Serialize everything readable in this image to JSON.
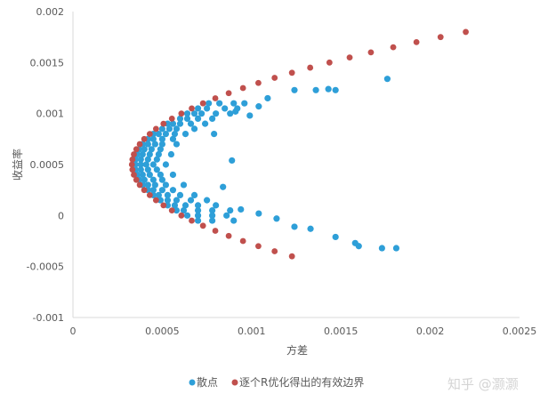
{
  "chart_data": {
    "type": "scatter",
    "title": "",
    "xlabel": "方差",
    "ylabel": "收益率",
    "xlim": [
      0,
      0.0025
    ],
    "ylim": [
      -0.001,
      0.002
    ],
    "xticks": [
      "0",
      "0.0005",
      "0.001",
      "0.0015",
      "0.002",
      "0.0025"
    ],
    "xtick_values": [
      0,
      0.0005,
      0.001,
      0.0015,
      0.002,
      0.0025
    ],
    "yticks": [
      "-0.001",
      "-0.0005",
      "0",
      "0.0005",
      "0.001",
      "0.0015",
      "0.002"
    ],
    "ytick_values": [
      -0.001,
      -0.0005,
      0,
      0.0005,
      0.001,
      0.0015,
      0.002
    ],
    "grid": false,
    "legend_placement": "bottom",
    "series": [
      {
        "name": "散点",
        "color": "#2e9fd8",
        "points": [
          [
            0.00176,
            0.00134
          ],
          [
            0.00143,
            0.00124
          ],
          [
            0.00147,
            0.00123
          ],
          [
            0.00136,
            0.00123
          ],
          [
            0.00124,
            0.00123
          ],
          [
            0.00158,
            -0.00027
          ],
          [
            0.0016,
            -0.0003
          ],
          [
            0.00173,
            -0.00032
          ],
          [
            0.00181,
            -0.00032
          ],
          [
            0.00147,
            -0.00021
          ],
          [
            0.00133,
            -0.00013
          ],
          [
            0.00124,
            -0.00011
          ],
          [
            0.00109,
            0.00115
          ],
          [
            0.00104,
            0.00107
          ],
          [
            0.00099,
            0.00098
          ],
          [
            0.00091,
            0.00102
          ],
          [
            0.00079,
            0.0008
          ],
          [
            0.00089,
            0.00054
          ],
          [
            0.00084,
            0.00028
          ],
          [
            0.00104,
            2e-05
          ],
          [
            0.00114,
            -3e-05
          ],
          [
            0.00094,
            6e-05
          ],
          [
            0.00076,
            0.0011
          ],
          [
            0.00082,
            0.0011
          ],
          [
            0.0009,
            0.0011
          ],
          [
            0.00096,
            0.0011
          ],
          [
            0.0007,
            0.00105
          ],
          [
            0.00075,
            0.00105
          ],
          [
            0.00085,
            0.00105
          ],
          [
            0.00092,
            0.00105
          ],
          [
            0.00064,
            0.001
          ],
          [
            0.00068,
            0.001
          ],
          [
            0.00072,
            0.001
          ],
          [
            0.0008,
            0.001
          ],
          [
            0.00088,
            0.001
          ],
          [
            0.0006,
            0.00095
          ],
          [
            0.00064,
            0.00095
          ],
          [
            0.0007,
            0.00095
          ],
          [
            0.00078,
            0.00095
          ],
          [
            0.00053,
            0.0009
          ],
          [
            0.00056,
            0.0009
          ],
          [
            0.0006,
            0.0009
          ],
          [
            0.00066,
            0.0009
          ],
          [
            0.00074,
            0.0009
          ],
          [
            0.0005,
            0.00085
          ],
          [
            0.00054,
            0.00085
          ],
          [
            0.00058,
            0.00085
          ],
          [
            0.00068,
            0.00085
          ],
          [
            0.00045,
            0.0008
          ],
          [
            0.00048,
            0.0008
          ],
          [
            0.00052,
            0.0008
          ],
          [
            0.00057,
            0.0008
          ],
          [
            0.00063,
            0.0008
          ],
          [
            0.00042,
            0.00075
          ],
          [
            0.00045,
            0.00075
          ],
          [
            0.0005,
            0.00075
          ],
          [
            0.00056,
            0.00075
          ],
          [
            0.00039,
            0.0007
          ],
          [
            0.00042,
            0.0007
          ],
          [
            0.00046,
            0.0007
          ],
          [
            0.0005,
            0.0007
          ],
          [
            0.00058,
            0.0007
          ],
          [
            0.00037,
            0.00065
          ],
          [
            0.0004,
            0.00065
          ],
          [
            0.00044,
            0.00065
          ],
          [
            0.00049,
            0.00065
          ],
          [
            0.00036,
            0.0006
          ],
          [
            0.00039,
            0.0006
          ],
          [
            0.00043,
            0.0006
          ],
          [
            0.00048,
            0.0006
          ],
          [
            0.00055,
            0.0006
          ],
          [
            0.00035,
            0.00055
          ],
          [
            0.00038,
            0.00055
          ],
          [
            0.00042,
            0.00055
          ],
          [
            0.00047,
            0.00055
          ],
          [
            0.00035,
            0.0005
          ],
          [
            0.00038,
            0.0005
          ],
          [
            0.00041,
            0.0005
          ],
          [
            0.00045,
            0.0005
          ],
          [
            0.00052,
            0.0005
          ],
          [
            0.00035,
            0.00045
          ],
          [
            0.00038,
            0.00045
          ],
          [
            0.00042,
            0.00045
          ],
          [
            0.00047,
            0.00045
          ],
          [
            0.00036,
            0.0004
          ],
          [
            0.00039,
            0.0004
          ],
          [
            0.00043,
            0.0004
          ],
          [
            0.00049,
            0.0004
          ],
          [
            0.00056,
            0.0004
          ],
          [
            0.00037,
            0.00035
          ],
          [
            0.0004,
            0.00035
          ],
          [
            0.00045,
            0.00035
          ],
          [
            0.0005,
            0.00035
          ],
          [
            0.00039,
            0.0003
          ],
          [
            0.00042,
            0.0003
          ],
          [
            0.00046,
            0.0003
          ],
          [
            0.00052,
            0.0003
          ],
          [
            0.00062,
            0.0003
          ],
          [
            0.00042,
            0.00025
          ],
          [
            0.00045,
            0.00025
          ],
          [
            0.0005,
            0.00025
          ],
          [
            0.00056,
            0.00025
          ],
          [
            0.00045,
            0.0002
          ],
          [
            0.00048,
            0.0002
          ],
          [
            0.00053,
            0.0002
          ],
          [
            0.0006,
            0.0002
          ],
          [
            0.00068,
            0.0002
          ],
          [
            0.00049,
            0.00015
          ],
          [
            0.00053,
            0.00015
          ],
          [
            0.00058,
            0.00015
          ],
          [
            0.00066,
            0.00015
          ],
          [
            0.00075,
            0.00015
          ],
          [
            0.00053,
            0.0001
          ],
          [
            0.00057,
            0.0001
          ],
          [
            0.00063,
            0.0001
          ],
          [
            0.0007,
            0.0001
          ],
          [
            0.0008,
            0.0001
          ],
          [
            0.00058,
            5e-05
          ],
          [
            0.00062,
            5e-05
          ],
          [
            0.0007,
            5e-05
          ],
          [
            0.00078,
            5e-05
          ],
          [
            0.00088,
            5e-05
          ],
          [
            0.00064,
            0
          ],
          [
            0.0007,
            0
          ],
          [
            0.00078,
            0
          ],
          [
            0.00086,
            0
          ],
          [
            0.0007,
            -5e-05
          ],
          [
            0.00078,
            -5e-05
          ],
          [
            0.0009,
            -5e-05
          ]
        ]
      },
      {
        "name": "逐个R优化得出的有效边界",
        "color": "#c0504d",
        "points": [
          [
            0.001226,
            -0.0004
          ],
          [
            0.001129,
            -0.00035
          ],
          [
            0.001038,
            -0.0003
          ],
          [
            0.000952,
            -0.00025
          ],
          [
            0.000872,
            -0.0002
          ],
          [
            0.000797,
            -0.00015
          ],
          [
            0.000728,
            -0.0001
          ],
          [
            0.000665,
            -5e-05
          ],
          [
            0.000607,
            0
          ],
          [
            0.000554,
            5e-05
          ],
          [
            0.000507,
            0.0001
          ],
          [
            0.000465,
            0.00015
          ],
          [
            0.00043,
            0.0002
          ],
          [
            0.000399,
            0.00025
          ],
          [
            0.000374,
            0.0003
          ],
          [
            0.000355,
            0.00035
          ],
          [
            0.000341,
            0.0004
          ],
          [
            0.000333,
            0.00045
          ],
          [
            0.00033,
            0.0005
          ],
          [
            0.000333,
            0.00055
          ],
          [
            0.000341,
            0.0006
          ],
          [
            0.000355,
            0.00065
          ],
          [
            0.000374,
            0.0007
          ],
          [
            0.000399,
            0.00075
          ],
          [
            0.00043,
            0.0008
          ],
          [
            0.000465,
            0.00085
          ],
          [
            0.000507,
            0.0009
          ],
          [
            0.000554,
            0.00095
          ],
          [
            0.000607,
            0.001
          ],
          [
            0.000665,
            0.00105
          ],
          [
            0.000728,
            0.0011
          ],
          [
            0.000797,
            0.00115
          ],
          [
            0.000872,
            0.0012
          ],
          [
            0.000952,
            0.00125
          ],
          [
            0.001038,
            0.0013
          ],
          [
            0.001129,
            0.00135
          ],
          [
            0.001226,
            0.0014
          ],
          [
            0.001328,
            0.00145
          ],
          [
            0.001436,
            0.0015
          ],
          [
            0.001549,
            0.00155
          ],
          [
            0.001668,
            0.0016
          ],
          [
            0.001793,
            0.00165
          ],
          [
            0.001923,
            0.0017
          ],
          [
            0.002058,
            0.00175
          ],
          [
            0.002199,
            0.0018
          ]
        ]
      }
    ]
  },
  "watermark": "知乎 @灏灏"
}
